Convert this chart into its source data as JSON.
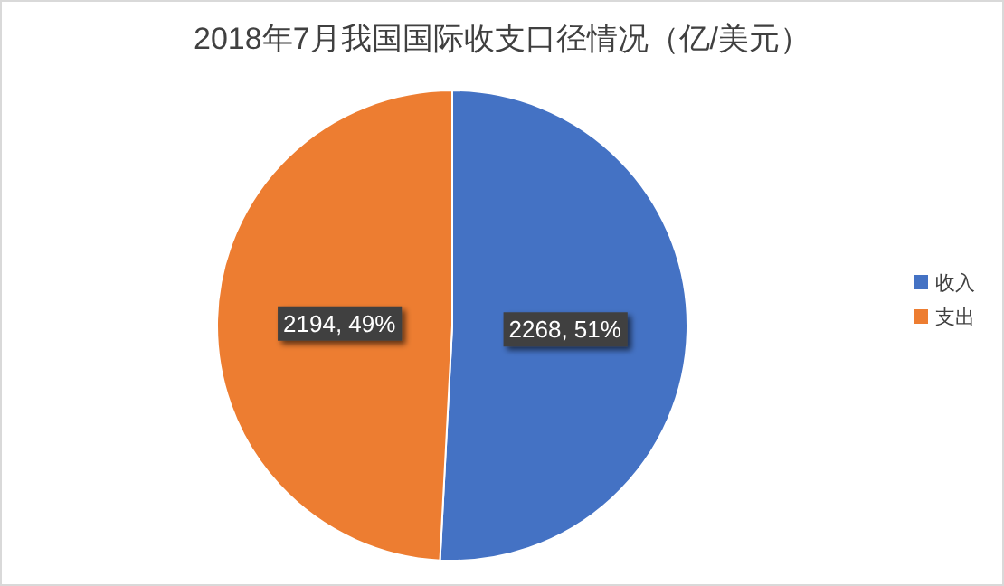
{
  "chart_data": {
    "type": "pie",
    "title": "2018年7月我国国际收支口径情况（亿/美元）",
    "categories": [
      "收入",
      "支出"
    ],
    "values": [
      2268,
      2194
    ],
    "colors": [
      "#4472c4",
      "#ed7d31"
    ],
    "value_labels": [
      "2268, 51%",
      "2194, 49%"
    ],
    "legend": "right"
  }
}
